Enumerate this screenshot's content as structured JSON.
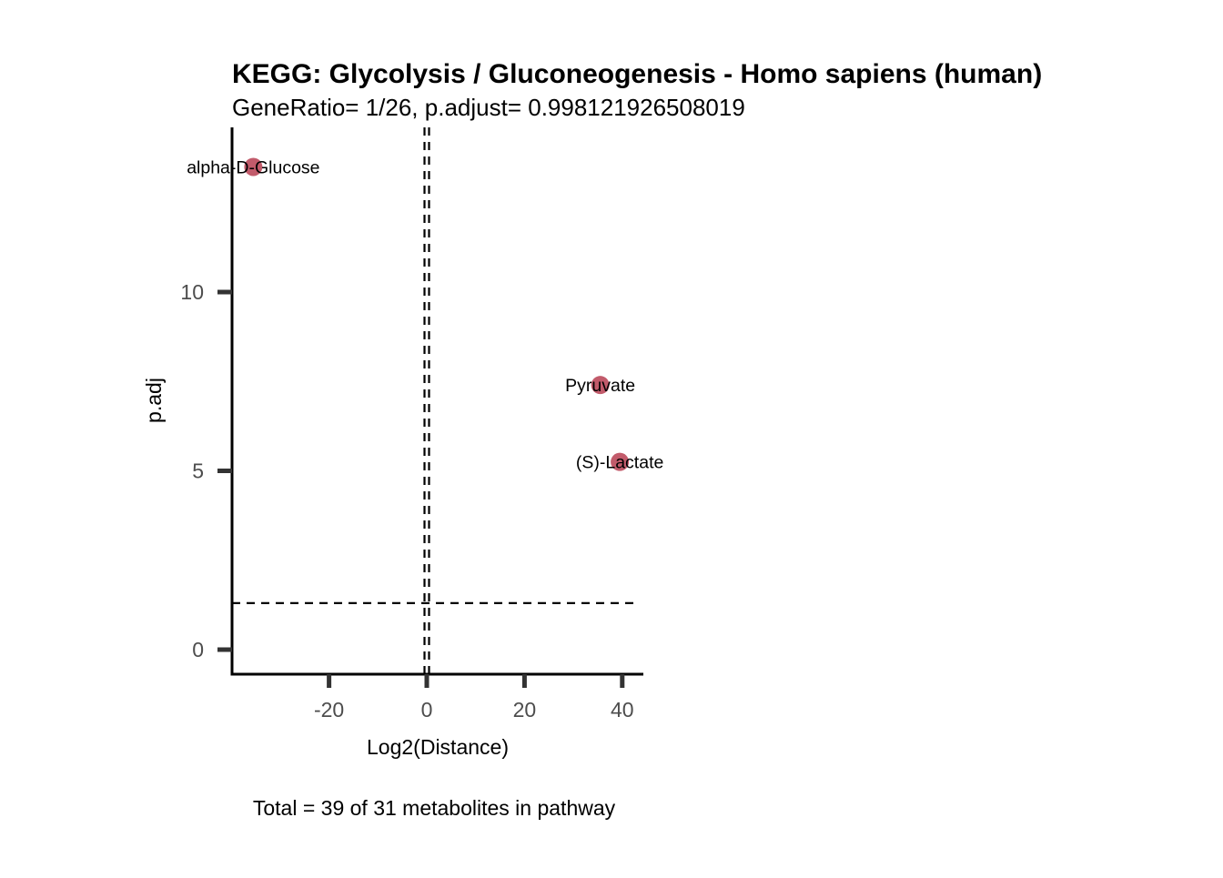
{
  "chart_data": {
    "type": "scatter",
    "title": "KEGG: Glycolysis / Gluconeogenesis - Homo sapiens (human)",
    "subtitle": "GeneRatio= 1/26, p.adjust= 0.998121926508019",
    "xlabel": "Log2(Distance)",
    "ylabel": "p.adj",
    "caption": "Total = 39 of 31 metabolites in pathway",
    "xlim": [
      -38,
      44
    ],
    "ylim": [
      -0.7,
      14.8
    ],
    "x_ticks": [
      -20,
      0,
      20,
      40
    ],
    "x_tick_labels": [
      "-20",
      "0",
      "20",
      "40"
    ],
    "y_ticks": [
      0,
      5,
      10
    ],
    "y_tick_labels": [
      "0",
      "5",
      "10"
    ],
    "grid": false,
    "legend": "none",
    "reference_lines": {
      "vertical_x": 0,
      "horizontal_y": 1.3
    },
    "point_color": "#c25b6b",
    "points": [
      {
        "label": "alpha-D-Glucose",
        "x": -35.5,
        "y": 13.5
      },
      {
        "label": "Pyruvate",
        "x": 35.5,
        "y": 7.4
      },
      {
        "label": "(S)-Lactate",
        "x": 39.5,
        "y": 5.25
      }
    ]
  }
}
